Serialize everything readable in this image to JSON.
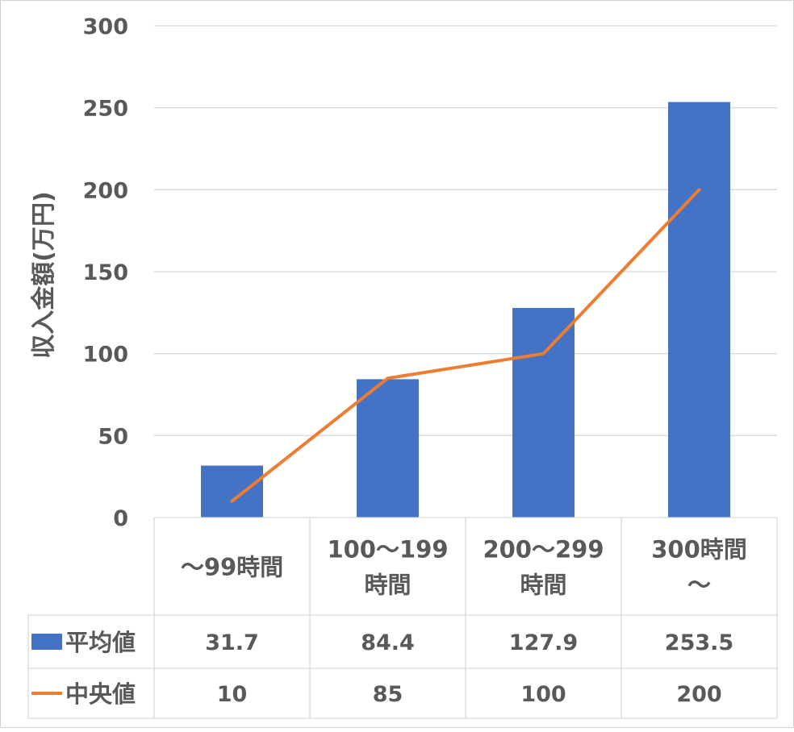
{
  "chart_data": {
    "type": "bar",
    "title": "",
    "xlabel": "",
    "ylabel": "収入金額(万円)",
    "ylim": [
      0,
      300
    ],
    "yticks": [
      0,
      50,
      100,
      150,
      200,
      250,
      300
    ],
    "grid": true,
    "legend": "data-table",
    "categories": [
      [
        "～99時間"
      ],
      [
        "100～199",
        "時間"
      ],
      [
        "200～299",
        "時間"
      ],
      [
        "300時間",
        "～"
      ]
    ],
    "series": [
      {
        "name": "平均値",
        "type": "bar",
        "color": "#4472c4",
        "values": [
          31.7,
          84.4,
          127.9,
          253.5
        ],
        "labels": [
          "31.7",
          "84.4",
          "127.9",
          "253.5"
        ]
      },
      {
        "name": "中央値",
        "type": "line",
        "color": "#ed7d31",
        "values": [
          10,
          85,
          100,
          200
        ],
        "labels": [
          "10",
          "85",
          "100",
          "200"
        ]
      }
    ]
  }
}
